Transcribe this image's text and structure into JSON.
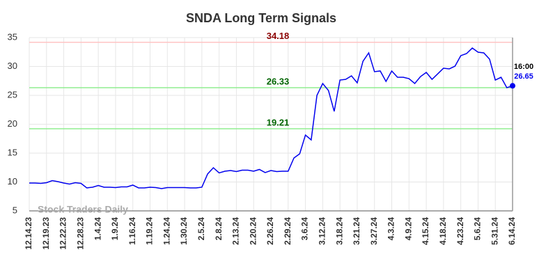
{
  "chart_data": {
    "type": "line",
    "title": "SNDA Long Term Signals",
    "watermark": "Stock Traders Daily",
    "categories": [
      "12.14.23",
      null,
      null,
      "12.19.23",
      null,
      null,
      "12.22.23",
      null,
      null,
      "12.28.23",
      null,
      null,
      "1.4.24",
      null,
      null,
      "1.9.24",
      null,
      null,
      "1.16.24",
      null,
      null,
      "1.19.24",
      null,
      null,
      "1.24.24",
      null,
      null,
      "1.30.24",
      null,
      null,
      "2.5.24",
      null,
      null,
      "2.8.24",
      null,
      null,
      "2.13.24",
      null,
      null,
      "2.20.24",
      null,
      null,
      "2.26.24",
      null,
      null,
      "2.29.24",
      null,
      null,
      "3.6.24",
      null,
      null,
      "3.12.24",
      null,
      null,
      "3.18.24",
      null,
      null,
      "3.21.24",
      null,
      null,
      "3.27.24",
      null,
      null,
      "4.3.24",
      null,
      null,
      "4.9.24",
      null,
      null,
      "4.15.24",
      null,
      null,
      "4.18.24",
      null,
      null,
      "4.23.24",
      null,
      null,
      "5.6.24",
      null,
      null,
      "5.31.24",
      null,
      null,
      "6.14.24"
    ],
    "values": [
      9.82,
      9.82,
      9.76,
      9.88,
      10.24,
      10.06,
      9.82,
      9.64,
      9.88,
      9.76,
      8.98,
      9.1,
      9.4,
      9.1,
      9.1,
      9.04,
      9.16,
      9.16,
      9.46,
      8.98,
      8.98,
      9.1,
      9.04,
      8.86,
      9.04,
      9.04,
      9.04,
      9.04,
      8.98,
      8.98,
      9.1,
      11.39,
      12.47,
      11.57,
      11.87,
      11.99,
      11.81,
      12.05,
      12.05,
      11.87,
      12.17,
      11.63,
      11.99,
      11.81,
      11.87,
      11.87,
      14.16,
      14.88,
      18.13,
      17.29,
      25.0,
      27.05,
      25.84,
      22.23,
      27.65,
      27.77,
      28.37,
      27.17,
      30.9,
      32.35,
      29.1,
      29.22,
      27.41,
      29.22,
      28.13,
      28.13,
      27.89,
      27.05,
      28.25,
      28.98,
      27.77,
      28.73,
      29.7,
      29.58,
      30.06,
      31.87,
      32.23,
      33.19,
      32.47,
      32.35,
      31.27,
      27.65,
      28.13,
      26.33,
      26.65
    ],
    "color": "#0000ee",
    "last_time": "16:00",
    "reference_lines": [
      {
        "value": 34.18,
        "color": "#ffc4c4",
        "label_color": "#8b0000"
      },
      {
        "value": 26.33,
        "color": "#90ee90",
        "label_color": "#006400"
      },
      {
        "value": 19.21,
        "color": "#90ee90",
        "label_color": "#006400"
      }
    ],
    "ylim": [
      5,
      35
    ],
    "yticks": [
      5,
      10,
      15,
      20,
      25,
      30,
      35
    ],
    "grid": true
  }
}
